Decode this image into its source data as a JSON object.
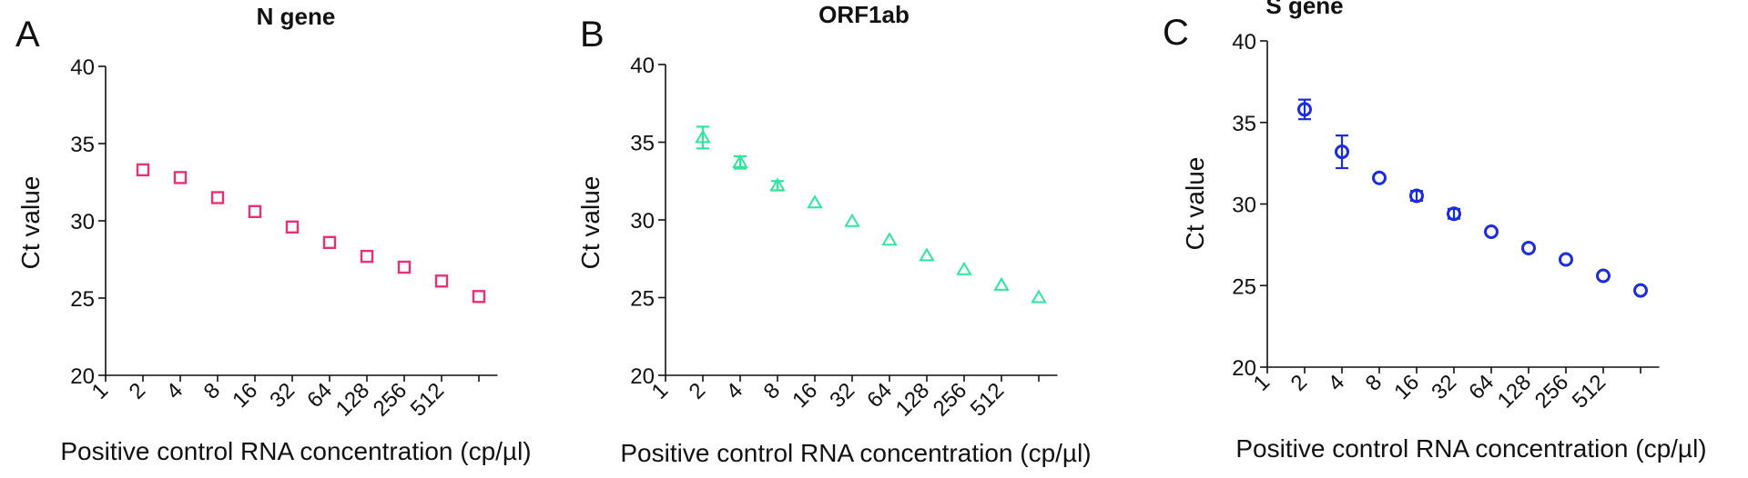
{
  "chart_data": [
    {
      "type": "scatter",
      "panel_label": "A",
      "title": "N gene",
      "xlabel": "Positive control RNA concentration (cp/µl)",
      "ylabel": "Ct value",
      "categories": [
        "1",
        "2",
        "4",
        "8",
        "16",
        "32",
        "64",
        "128",
        "256",
        "512",
        null
      ],
      "series": [
        {
          "color": "#e8307a",
          "marker": "square",
          "values": [
            null,
            33.3,
            32.8,
            31.5,
            30.6,
            29.6,
            28.6,
            27.7,
            27.0,
            26.1,
            25.1
          ],
          "errors": [
            null,
            null,
            null,
            null,
            null,
            null,
            null,
            null,
            null,
            null,
            null
          ]
        }
      ],
      "ylim": [
        20,
        40
      ],
      "yticks": [
        20,
        25,
        30,
        35,
        40
      ]
    },
    {
      "type": "scatter",
      "panel_label": "B",
      "title": "ORF1ab",
      "xlabel": "Positive control RNA concentration (cp/µl)",
      "ylabel": "Ct value",
      "categories": [
        "1",
        "2",
        "4",
        "8",
        "16",
        "32",
        "64",
        "128",
        "256",
        "512",
        null
      ],
      "series": [
        {
          "color": "#2de89a",
          "marker": "triangle",
          "values": [
            null,
            35.3,
            33.7,
            32.2,
            31.1,
            29.9,
            28.7,
            27.7,
            26.8,
            25.8,
            25.0
          ],
          "errors": [
            null,
            0.7,
            0.4,
            0.3,
            null,
            null,
            null,
            null,
            null,
            null,
            null
          ]
        }
      ],
      "ylim": [
        20,
        40
      ],
      "yticks": [
        20,
        25,
        30,
        35,
        40
      ]
    },
    {
      "type": "scatter",
      "panel_label": "C",
      "title": "S gene",
      "xlabel": "Positive control RNA concentration (cp/µl)",
      "ylabel": "Ct value",
      "categories": [
        "1",
        "2",
        "4",
        "8",
        "16",
        "32",
        "64",
        "128",
        "256",
        "512",
        null
      ],
      "series": [
        {
          "color": "#1a2ee0",
          "marker": "circle",
          "values": [
            null,
            35.8,
            33.2,
            31.6,
            30.5,
            29.4,
            28.3,
            27.3,
            26.6,
            25.6,
            24.7
          ],
          "errors": [
            null,
            0.6,
            1.0,
            null,
            0.3,
            0.3,
            null,
            null,
            null,
            null,
            null
          ]
        }
      ],
      "ylim": [
        20,
        40
      ],
      "yticks": [
        20,
        25,
        30,
        35,
        40
      ]
    }
  ]
}
